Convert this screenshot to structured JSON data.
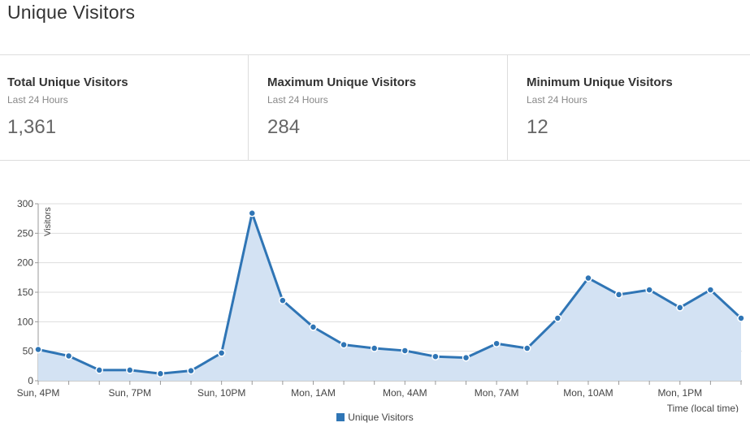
{
  "page": {
    "title": "Unique Visitors"
  },
  "stats": [
    {
      "title": "Total Unique Visitors",
      "subtitle": "Last 24 Hours",
      "value": "1,361"
    },
    {
      "title": "Maximum Unique Visitors",
      "subtitle": "Last 24 Hours",
      "value": "284"
    },
    {
      "title": "Minimum Unique Visitors",
      "subtitle": "Last 24 Hours",
      "value": "12"
    }
  ],
  "chart_data": {
    "type": "area",
    "title": "",
    "ylabel": "Visitors",
    "xlabel": "Time (local time)",
    "ylim": [
      0,
      300
    ],
    "yticks": [
      0,
      50,
      100,
      150,
      200,
      250,
      300
    ],
    "grid": true,
    "legend_position": "bottom-center",
    "x_tick_labels": [
      "Sun, 4PM",
      "Sun, 7PM",
      "Sun, 10PM",
      "Mon, 1AM",
      "Mon, 4AM",
      "Mon, 7AM",
      "Mon, 10AM",
      "Mon, 1PM"
    ],
    "series": [
      {
        "name": "Unique Visitors",
        "color": "#2f75b5",
        "fill": "#d3e2f3",
        "x": [
          "Sun 4PM",
          "Sun 5PM",
          "Sun 6PM",
          "Sun 7PM",
          "Sun 8PM",
          "Sun 9PM",
          "Sun 10PM",
          "Sun 11PM",
          "Mon 12AM",
          "Mon 1AM",
          "Mon 2AM",
          "Mon 3AM",
          "Mon 4AM",
          "Mon 5AM",
          "Mon 6AM",
          "Mon 7AM",
          "Mon 8AM",
          "Mon 9AM",
          "Mon 10AM",
          "Mon 11AM",
          "Mon 12PM",
          "Mon 1PM",
          "Mon 2PM",
          "Mon 3PM"
        ],
        "values": [
          53,
          42,
          18,
          18,
          12,
          17,
          47,
          284,
          136,
          91,
          61,
          55,
          51,
          41,
          39,
          63,
          55,
          106,
          174,
          146,
          154,
          124,
          154,
          106
        ]
      }
    ]
  }
}
